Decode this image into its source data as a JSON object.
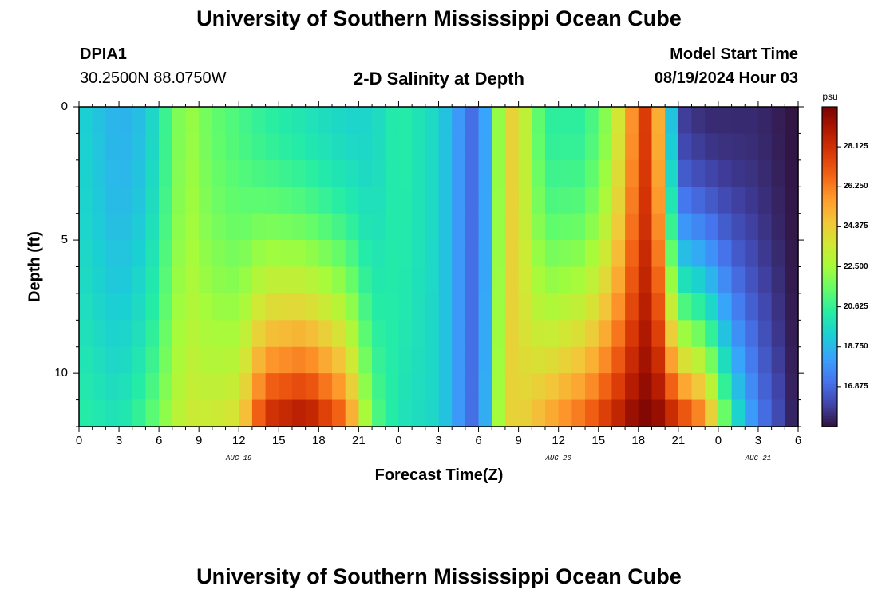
{
  "page": {
    "title_top": "University of Southern Mississippi Ocean Cube",
    "title_bottom": "University of Southern Mississippi Ocean Cube",
    "station_id": "DPIA1",
    "station_coords": "30.2500N  88.0750W",
    "plot_title": "2-D Salinity at Depth",
    "model_start_label": "Model Start Time",
    "model_start_value": "08/19/2024 Hour 03"
  },
  "chart_data": {
    "type": "heatmap",
    "title": "2-D Salinity at Depth",
    "xlabel": "Forecast Time(Z)",
    "ylabel": "Depth (ft)",
    "x_start_hour": 0,
    "x_end_hour": 54,
    "n_time_cols": 54,
    "y_depth_range": [
      0,
      12
    ],
    "n_depth_rows": 12,
    "x_ticks": [
      {
        "hour": 0,
        "label": "0"
      },
      {
        "hour": 3,
        "label": "3"
      },
      {
        "hour": 6,
        "label": "6"
      },
      {
        "hour": 9,
        "label": "9"
      },
      {
        "hour": 12,
        "label": "12"
      },
      {
        "hour": 15,
        "label": "15"
      },
      {
        "hour": 18,
        "label": "18"
      },
      {
        "hour": 21,
        "label": "21"
      },
      {
        "hour": 24,
        "label": "0"
      },
      {
        "hour": 27,
        "label": "3"
      },
      {
        "hour": 30,
        "label": "6"
      },
      {
        "hour": 33,
        "label": "9"
      },
      {
        "hour": 36,
        "label": "12"
      },
      {
        "hour": 39,
        "label": "15"
      },
      {
        "hour": 42,
        "label": "18"
      },
      {
        "hour": 45,
        "label": "21"
      },
      {
        "hour": 48,
        "label": "0"
      },
      {
        "hour": 51,
        "label": "3"
      },
      {
        "hour": 54,
        "label": "6"
      }
    ],
    "date_labels": [
      {
        "hour": 12,
        "label": "AUG 19"
      },
      {
        "hour": 36,
        "label": "AUG 20"
      },
      {
        "hour": 51,
        "label": "AUG 21"
      }
    ],
    "y_ticks": [
      {
        "depth": 0,
        "label": "0"
      },
      {
        "depth": 5,
        "label": "5"
      },
      {
        "depth": 10,
        "label": "10"
      }
    ],
    "colorbar": {
      "unit": "psu",
      "min": 15.0,
      "max": 30.0,
      "ticks": [
        "28.125",
        "26.250",
        "24.375",
        "22.500",
        "20.625",
        "18.750",
        "16.875"
      ],
      "tick_values": [
        28.125,
        26.25,
        24.375,
        22.5,
        20.625,
        18.75,
        16.875
      ],
      "colors": [
        "#30123b",
        "#4145ab",
        "#4675ed",
        "#39a2fc",
        "#1bcfd4",
        "#24eca6",
        "#61fc6c",
        "#a4fc3b",
        "#d1e834",
        "#f3c63a",
        "#fe9b2d",
        "#f36315",
        "#d93806",
        "#b11901",
        "#7a0402"
      ]
    },
    "salinity_keyframes": [
      {
        "hour": 0,
        "surface": 19.5,
        "bottom": 20.5
      },
      {
        "hour": 3,
        "surface": 18.5,
        "bottom": 20.0
      },
      {
        "hour": 5,
        "surface": 19.0,
        "bottom": 21.0
      },
      {
        "hour": 8,
        "surface": 22.5,
        "bottom": 23.5
      },
      {
        "hour": 10,
        "surface": 21.5,
        "bottom": 23.5
      },
      {
        "hour": 12,
        "surface": 21.0,
        "bottom": 24.0
      },
      {
        "hour": 14,
        "surface": 20.5,
        "bottom": 28.5
      },
      {
        "hour": 17,
        "surface": 20.0,
        "bottom": 29.5
      },
      {
        "hour": 20,
        "surface": 19.5,
        "bottom": 27.0
      },
      {
        "hour": 22,
        "surface": 19.5,
        "bottom": 21.5
      },
      {
        "hour": 24,
        "surface": 20.5,
        "bottom": 20.0
      },
      {
        "hour": 27,
        "surface": 19.5,
        "bottom": 19.5
      },
      {
        "hour": 29,
        "surface": 17.5,
        "bottom": 17.5
      },
      {
        "hour": 30,
        "surface": 16.5,
        "bottom": 16.5
      },
      {
        "hour": 31,
        "surface": 20.0,
        "bottom": 20.5
      },
      {
        "hour": 32,
        "surface": 24.5,
        "bottom": 24.5
      },
      {
        "hour": 33,
        "surface": 24.0,
        "bottom": 24.0
      },
      {
        "hour": 35,
        "surface": 20.5,
        "bottom": 25.5
      },
      {
        "hour": 38,
        "surface": 20.5,
        "bottom": 27.0
      },
      {
        "hour": 40,
        "surface": 22.5,
        "bottom": 28.5
      },
      {
        "hour": 42,
        "surface": 27.0,
        "bottom": 30.0
      },
      {
        "hour": 43,
        "surface": 28.5,
        "bottom": 30.0
      },
      {
        "hour": 44,
        "surface": 22.0,
        "bottom": 29.5
      },
      {
        "hour": 45,
        "surface": 16.0,
        "bottom": 28.5
      },
      {
        "hour": 47,
        "surface": 15.5,
        "bottom": 26.5
      },
      {
        "hour": 49,
        "surface": 15.5,
        "bottom": 20.5
      },
      {
        "hour": 51,
        "surface": 15.5,
        "bottom": 17.5
      },
      {
        "hour": 54,
        "surface": 15.0,
        "bottom": 15.0
      }
    ]
  }
}
